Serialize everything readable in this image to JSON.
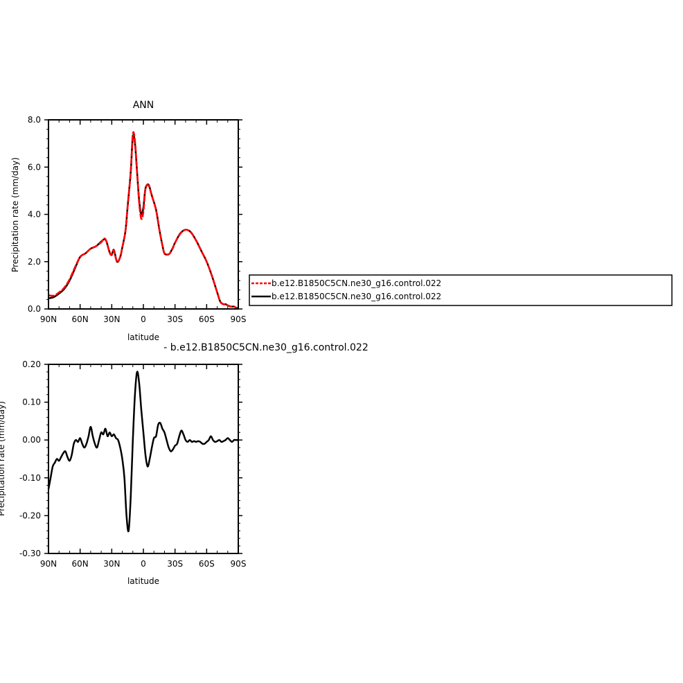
{
  "chart_data": [
    {
      "type": "line",
      "title": "ANN",
      "xlabel": "latitude",
      "ylabel": "Precipitation rate (mm/day)",
      "xlim": [
        90,
        -90
      ],
      "ylim": [
        0,
        8
      ],
      "x_ticks": [
        90,
        60,
        30,
        0,
        -30,
        -60,
        -90
      ],
      "x_tick_labels": [
        "90N",
        "60N",
        "30N",
        "0",
        "30S",
        "60S",
        "90S"
      ],
      "y_ticks": [
        0,
        2,
        4,
        6,
        8
      ],
      "y_tick_labels": [
        "0.0",
        "2.0",
        "4.0",
        "6.0",
        "8.0"
      ],
      "legend_position": "right",
      "series": [
        {
          "name": "b.e12.B1850C5CN.ne30_g16.control.022",
          "color": "#000000",
          "dash": "solid",
          "x": [
            90,
            85,
            80,
            75,
            70,
            65,
            60,
            55,
            50,
            45,
            40,
            37,
            35,
            32,
            30,
            28,
            25,
            22,
            20,
            17,
            15,
            12,
            10,
            8,
            6,
            4,
            2,
            0,
            -2,
            -5,
            -8,
            -12,
            -15,
            -18,
            -20,
            -23,
            -25,
            -28,
            -30,
            -35,
            -40,
            -45,
            -50,
            -55,
            -60,
            -65,
            -70,
            -73,
            -76,
            -78,
            -80,
            -83,
            -86,
            -88,
            -90
          ],
          "y": [
            0.45,
            0.5,
            0.65,
            0.85,
            1.2,
            1.7,
            2.2,
            2.35,
            2.55,
            2.65,
            2.85,
            2.95,
            2.85,
            2.4,
            2.3,
            2.5,
            2.0,
            2.2,
            2.6,
            3.3,
            4.3,
            5.8,
            7.3,
            7.0,
            5.8,
            4.6,
            4.0,
            4.3,
            5.1,
            5.25,
            4.8,
            4.2,
            3.4,
            2.7,
            2.35,
            2.3,
            2.35,
            2.6,
            2.8,
            3.2,
            3.35,
            3.25,
            2.9,
            2.45,
            2.0,
            1.4,
            0.7,
            0.3,
            0.2,
            0.2,
            0.15,
            0.1,
            0.1,
            0.05,
            0.05
          ]
        },
        {
          "name": "b.e12.B1850C5CN.ne30_g16.control.022",
          "color": "#ff0000",
          "dash": "dashed",
          "x": [
            90,
            85,
            80,
            75,
            70,
            65,
            60,
            55,
            50,
            45,
            40,
            37,
            35,
            32,
            30,
            28,
            25,
            22,
            20,
            17,
            15,
            12,
            10,
            8,
            6,
            4,
            2,
            0,
            -2,
            -5,
            -8,
            -12,
            -15,
            -18,
            -20,
            -23,
            -25,
            -28,
            -30,
            -35,
            -40,
            -45,
            -50,
            -55,
            -60,
            -65,
            -70,
            -73,
            -76,
            -78,
            -80,
            -83,
            -86,
            -88,
            -90
          ],
          "y": [
            0.58,
            0.56,
            0.7,
            0.9,
            1.25,
            1.75,
            2.2,
            2.35,
            2.55,
            2.65,
            2.82,
            2.98,
            2.85,
            2.38,
            2.28,
            2.48,
            1.99,
            2.19,
            2.6,
            3.3,
            4.3,
            5.8,
            7.4,
            7.1,
            5.8,
            4.5,
            3.82,
            4.12,
            5.08,
            5.22,
            4.79,
            4.19,
            3.39,
            2.7,
            2.34,
            2.3,
            2.35,
            2.58,
            2.8,
            3.18,
            3.35,
            3.24,
            2.89,
            2.45,
            2.0,
            1.4,
            0.7,
            0.3,
            0.2,
            0.2,
            0.15,
            0.1,
            0.1,
            0.05,
            0.05
          ]
        }
      ]
    },
    {
      "type": "line",
      "title": "- b.e12.B1850C5CN.ne30_g16.control.022",
      "xlabel": "latitude",
      "ylabel": "Precipitation rate (mm/day)",
      "xlim": [
        90,
        -90
      ],
      "ylim": [
        -0.3,
        0.2
      ],
      "x_ticks": [
        90,
        60,
        30,
        0,
        -30,
        -60,
        -90
      ],
      "x_tick_labels": [
        "90N",
        "60N",
        "30N",
        "0",
        "30S",
        "60S",
        "90S"
      ],
      "y_ticks": [
        -0.3,
        -0.2,
        -0.1,
        0,
        0.1,
        0.2
      ],
      "y_tick_labels": [
        "-0.30",
        "-0.20",
        "-0.10",
        "0.00",
        "0.10",
        "0.20"
      ],
      "series": [
        {
          "name": "",
          "color": "#000000",
          "dash": "solid",
          "x": [
            90,
            88,
            86,
            84,
            82,
            80,
            78,
            76,
            74,
            72,
            70,
            68,
            66,
            64,
            62,
            60,
            58,
            56,
            54,
            52,
            50,
            48,
            46,
            44,
            42,
            40,
            38,
            36,
            34,
            32,
            30,
            28,
            26,
            24,
            22,
            20,
            18,
            16,
            14,
            12,
            10,
            8,
            6,
            4,
            2,
            0,
            -2,
            -4,
            -6,
            -8,
            -10,
            -12,
            -14,
            -16,
            -18,
            -20,
            -22,
            -24,
            -26,
            -28,
            -30,
            -32,
            -34,
            -36,
            -38,
            -40,
            -42,
            -44,
            -46,
            -48,
            -50,
            -52,
            -54,
            -56,
            -58,
            -60,
            -62,
            -64,
            -66,
            -68,
            -70,
            -72,
            -74,
            -76,
            -78,
            -80,
            -82,
            -84,
            -86,
            -88,
            -90
          ],
          "y": [
            -0.13,
            -0.1,
            -0.07,
            -0.06,
            -0.05,
            -0.055,
            -0.045,
            -0.035,
            -0.03,
            -0.045,
            -0.055,
            -0.04,
            -0.01,
            0.0,
            -0.005,
            0.005,
            -0.01,
            -0.02,
            -0.01,
            0.01,
            0.035,
            0.01,
            -0.01,
            -0.02,
            0.0,
            0.02,
            0.015,
            0.03,
            0.01,
            0.02,
            0.01,
            0.015,
            0.005,
            0.0,
            -0.02,
            -0.05,
            -0.1,
            -0.2,
            -0.24,
            -0.15,
            0.0,
            0.12,
            0.18,
            0.15,
            0.08,
            0.02,
            -0.04,
            -0.07,
            -0.05,
            -0.02,
            0.005,
            0.01,
            0.04,
            0.045,
            0.03,
            0.02,
            0.0,
            -0.02,
            -0.03,
            -0.025,
            -0.015,
            -0.01,
            0.01,
            0.025,
            0.015,
            0.0,
            -0.005,
            0.0,
            -0.005,
            -0.003,
            -0.005,
            -0.003,
            -0.005,
            -0.01,
            -0.01,
            -0.005,
            0.0,
            0.01,
            0.0,
            -0.005,
            -0.003,
            0.0,
            -0.005,
            -0.003,
            0.0,
            0.005,
            0.0,
            -0.005,
            0.0,
            0.0,
            0.0
          ]
        }
      ]
    }
  ],
  "legend": {
    "items": [
      {
        "label": "b.e12.B1850C5CN.ne30_g16.control.022",
        "color": "#ff0000",
        "dash": "dashed"
      },
      {
        "label": "b.e12.B1850C5CN.ne30_g16.control.022",
        "color": "#000000",
        "dash": "solid"
      }
    ]
  }
}
